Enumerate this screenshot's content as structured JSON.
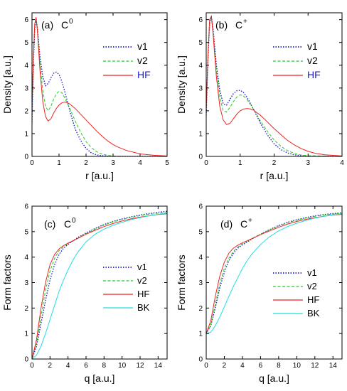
{
  "chart_data": [
    {
      "type": "line",
      "panel_label": "(a)",
      "species": "C",
      "species_sup": "0",
      "xlabel": "r [a.u.]",
      "ylabel": "Density [a.u.]",
      "xlim": [
        0,
        5
      ],
      "ylim": [
        0,
        6.3
      ],
      "xticks": [
        0,
        1,
        2,
        3,
        4,
        5
      ],
      "yticks": [
        0,
        1,
        2,
        3,
        4,
        5,
        6
      ],
      "legend_position": "right",
      "series": [
        {
          "name": "v1",
          "color": "#2222cc",
          "dash": "dotted",
          "label_color": "#000000",
          "x": [
            0,
            0.05,
            0.1,
            0.15,
            0.2,
            0.3,
            0.4,
            0.5,
            0.6,
            0.7,
            0.8,
            0.9,
            1.0,
            1.1,
            1.2,
            1.4,
            1.6,
            1.8,
            2.0,
            2.2,
            2.4,
            2.6,
            2.8,
            3.0,
            3.5,
            4.0,
            5.0
          ],
          "y": [
            1.5,
            4.0,
            5.6,
            6.05,
            5.6,
            4.3,
            3.5,
            3.1,
            3.2,
            3.45,
            3.65,
            3.7,
            3.6,
            3.3,
            2.9,
            2.0,
            1.2,
            0.7,
            0.35,
            0.15,
            0.06,
            0.03,
            0.01,
            0,
            0,
            0,
            0
          ]
        },
        {
          "name": "v2",
          "color": "#22cc22",
          "dash": "dashed",
          "label_color": "#000000",
          "x": [
            0,
            0.05,
            0.1,
            0.15,
            0.2,
            0.3,
            0.4,
            0.5,
            0.6,
            0.7,
            0.8,
            0.9,
            1.0,
            1.1,
            1.2,
            1.4,
            1.6,
            1.8,
            2.0,
            2.2,
            2.4,
            2.6,
            2.8,
            3.0,
            3.2,
            3.5,
            4.0,
            5.0
          ],
          "y": [
            1.8,
            4.2,
            5.7,
            6.1,
            5.6,
            4.0,
            2.9,
            2.2,
            2.0,
            2.2,
            2.5,
            2.75,
            2.85,
            2.8,
            2.6,
            2.1,
            1.55,
            1.05,
            0.65,
            0.38,
            0.2,
            0.1,
            0.05,
            0.02,
            0.01,
            0,
            0,
            0
          ]
        },
        {
          "name": "HF",
          "color": "#ee2222",
          "dash": "solid",
          "label_color": "#1a1acc",
          "x": [
            0,
            0.05,
            0.1,
            0.15,
            0.2,
            0.3,
            0.4,
            0.5,
            0.6,
            0.7,
            0.8,
            0.9,
            1.0,
            1.1,
            1.2,
            1.3,
            1.4,
            1.6,
            1.8,
            2.0,
            2.2,
            2.4,
            2.6,
            2.8,
            3.0,
            3.2,
            3.5,
            4.0,
            4.5,
            5.0
          ],
          "y": [
            2.0,
            4.3,
            5.8,
            6.1,
            5.5,
            3.7,
            2.4,
            1.75,
            1.55,
            1.65,
            1.9,
            2.1,
            2.25,
            2.35,
            2.38,
            2.36,
            2.3,
            2.1,
            1.85,
            1.6,
            1.35,
            1.1,
            0.88,
            0.68,
            0.52,
            0.4,
            0.26,
            0.11,
            0.05,
            0.02
          ]
        }
      ]
    },
    {
      "type": "line",
      "panel_label": "(b)",
      "species": "C",
      "species_sup": "+",
      "xlabel": "r [a.u.]",
      "ylabel": "Density [a.u.]",
      "xlim": [
        0,
        4
      ],
      "ylim": [
        0,
        6.3
      ],
      "xticks": [
        0,
        1,
        2,
        3,
        4
      ],
      "yticks": [
        0,
        1,
        2,
        3,
        4,
        5,
        6
      ],
      "legend_position": "right",
      "series": [
        {
          "name": "v1",
          "color": "#2222cc",
          "dash": "dotted",
          "label_color": "#000000",
          "x": [
            0,
            0.05,
            0.1,
            0.15,
            0.2,
            0.3,
            0.4,
            0.5,
            0.6,
            0.7,
            0.8,
            0.9,
            1.0,
            1.1,
            1.2,
            1.4,
            1.6,
            1.8,
            2.0,
            2.2,
            2.4,
            2.6,
            2.8,
            3.0,
            4.0
          ],
          "y": [
            1.8,
            4.2,
            5.8,
            6.15,
            5.6,
            4.0,
            2.9,
            2.3,
            2.25,
            2.5,
            2.75,
            2.88,
            2.9,
            2.8,
            2.6,
            2.05,
            1.45,
            0.95,
            0.55,
            0.3,
            0.15,
            0.07,
            0.03,
            0.01,
            0
          ]
        },
        {
          "name": "v2",
          "color": "#22cc22",
          "dash": "dashed",
          "label_color": "#000000",
          "x": [
            0,
            0.05,
            0.1,
            0.15,
            0.2,
            0.3,
            0.4,
            0.5,
            0.6,
            0.7,
            0.8,
            0.9,
            1.0,
            1.1,
            1.2,
            1.4,
            1.6,
            1.8,
            2.0,
            2.2,
            2.4,
            2.6,
            2.8,
            3.0,
            4.0
          ],
          "y": [
            1.9,
            4.3,
            5.9,
            6.15,
            5.5,
            3.8,
            2.6,
            2.0,
            1.95,
            2.15,
            2.4,
            2.6,
            2.7,
            2.65,
            2.5,
            2.05,
            1.55,
            1.1,
            0.72,
            0.44,
            0.25,
            0.13,
            0.06,
            0.03,
            0
          ]
        },
        {
          "name": "HF",
          "color": "#ee2222",
          "dash": "solid",
          "label_color": "#1a1acc",
          "x": [
            0,
            0.05,
            0.1,
            0.15,
            0.2,
            0.3,
            0.4,
            0.5,
            0.6,
            0.7,
            0.8,
            0.9,
            1.0,
            1.1,
            1.2,
            1.3,
            1.4,
            1.6,
            1.8,
            2.0,
            2.2,
            2.4,
            2.6,
            2.8,
            3.0,
            3.2,
            3.5,
            4.0
          ],
          "y": [
            2.0,
            4.4,
            6.0,
            6.15,
            5.4,
            3.5,
            2.2,
            1.6,
            1.4,
            1.45,
            1.65,
            1.85,
            2.0,
            2.08,
            2.1,
            2.08,
            2.02,
            1.8,
            1.52,
            1.22,
            0.95,
            0.7,
            0.5,
            0.34,
            0.22,
            0.14,
            0.07,
            0.02
          ]
        }
      ]
    },
    {
      "type": "line",
      "panel_label": "(c)",
      "species": "C",
      "species_sup": "0",
      "xlabel": "q [a.u.]",
      "ylabel": "Form factors",
      "xlim": [
        0,
        15
      ],
      "ylim": [
        0,
        6
      ],
      "xticks": [
        0,
        2,
        4,
        6,
        8,
        10,
        12,
        14
      ],
      "yticks": [
        0,
        1,
        2,
        3,
        4,
        5,
        6
      ],
      "legend_position": "center-right",
      "series": [
        {
          "name": "v1",
          "color": "#2222cc",
          "dash": "dotted",
          "label_color": "#000000",
          "x": [
            0,
            0.5,
            1,
            1.5,
            2,
            2.5,
            3,
            3.5,
            4,
            5,
            6,
            7,
            8,
            9,
            10,
            11,
            12,
            13,
            14,
            15
          ],
          "y": [
            0,
            0.5,
            1.4,
            2.3,
            3.1,
            3.7,
            4.1,
            4.35,
            4.5,
            4.75,
            4.95,
            5.12,
            5.28,
            5.4,
            5.5,
            5.58,
            5.65,
            5.71,
            5.76,
            5.8
          ]
        },
        {
          "name": "v2",
          "color": "#22cc22",
          "dash": "dashed",
          "label_color": "#000000",
          "x": [
            0,
            0.5,
            1,
            1.5,
            2,
            2.5,
            3,
            3.5,
            4,
            5,
            6,
            7,
            8,
            9,
            10,
            11,
            12,
            13,
            14,
            15
          ],
          "y": [
            0,
            0.6,
            1.7,
            2.7,
            3.45,
            3.95,
            4.25,
            4.42,
            4.53,
            4.72,
            4.92,
            5.1,
            5.26,
            5.38,
            5.48,
            5.56,
            5.63,
            5.68,
            5.72,
            5.75
          ]
        },
        {
          "name": "HF",
          "color": "#ee2222",
          "dash": "solid",
          "label_color": "#000000",
          "x": [
            0,
            0.5,
            1,
            1.5,
            2,
            2.5,
            3,
            3.5,
            4,
            5,
            6,
            7,
            8,
            9,
            10,
            11,
            12,
            13,
            14,
            15
          ],
          "y": [
            0,
            0.75,
            2.0,
            3.0,
            3.7,
            4.1,
            4.32,
            4.45,
            4.55,
            4.72,
            4.9,
            5.05,
            5.2,
            5.32,
            5.42,
            5.5,
            5.57,
            5.62,
            5.67,
            5.7
          ]
        },
        {
          "name": "BK",
          "color": "#22dddd",
          "dash": "solid",
          "label_color": "#000000",
          "x": [
            0,
            0.5,
            1,
            1.5,
            2,
            2.5,
            3,
            3.5,
            4,
            4.5,
            5,
            6,
            7,
            8,
            9,
            10,
            11,
            12,
            13,
            14,
            15
          ],
          "y": [
            0,
            0.15,
            0.5,
            1.0,
            1.55,
            2.1,
            2.65,
            3.1,
            3.5,
            3.85,
            4.15,
            4.6,
            4.9,
            5.1,
            5.25,
            5.37,
            5.47,
            5.55,
            5.62,
            5.68,
            5.72
          ]
        }
      ]
    },
    {
      "type": "line",
      "panel_label": "(d)",
      "species": "C",
      "species_sup": "+",
      "xlabel": "q [a.u.]",
      "ylabel": "Form factors",
      "xlim": [
        0,
        15
      ],
      "ylim": [
        0,
        6
      ],
      "xticks": [
        0,
        2,
        4,
        6,
        8,
        10,
        12,
        14
      ],
      "yticks": [
        0,
        1,
        2,
        3,
        4,
        5,
        6
      ],
      "legend_position": "center-right",
      "series": [
        {
          "name": "v1",
          "color": "#2222cc",
          "dash": "dotted",
          "label_color": "#000000",
          "x": [
            0,
            0.5,
            1,
            1.5,
            2,
            2.5,
            3,
            3.5,
            4,
            5,
            6,
            7,
            8,
            9,
            10,
            11,
            12,
            13,
            14,
            15
          ],
          "y": [
            1.0,
            1.3,
            2.0,
            2.8,
            3.4,
            3.85,
            4.15,
            4.35,
            4.48,
            4.7,
            4.9,
            5.08,
            5.24,
            5.37,
            5.47,
            5.55,
            5.62,
            5.67,
            5.71,
            5.74
          ]
        },
        {
          "name": "v2",
          "color": "#22cc22",
          "dash": "dashed",
          "label_color": "#000000",
          "x": [
            0,
            0.5,
            1,
            1.5,
            2,
            2.5,
            3,
            3.5,
            4,
            5,
            6,
            7,
            8,
            9,
            10,
            11,
            12,
            13,
            14,
            15
          ],
          "y": [
            1.0,
            1.35,
            2.15,
            2.95,
            3.55,
            3.95,
            4.22,
            4.4,
            4.52,
            4.72,
            4.9,
            5.07,
            5.22,
            5.35,
            5.45,
            5.53,
            5.6,
            5.65,
            5.69,
            5.72
          ]
        },
        {
          "name": "HF",
          "color": "#ee2222",
          "dash": "solid",
          "label_color": "#000000",
          "x": [
            0,
            0.5,
            1,
            1.5,
            2,
            2.5,
            3,
            3.5,
            4,
            5,
            6,
            7,
            8,
            9,
            10,
            11,
            12,
            13,
            14,
            15
          ],
          "y": [
            1.0,
            1.5,
            2.45,
            3.25,
            3.8,
            4.15,
            4.35,
            4.47,
            4.56,
            4.72,
            4.88,
            5.03,
            5.17,
            5.3,
            5.4,
            5.48,
            5.55,
            5.6,
            5.65,
            5.68
          ]
        },
        {
          "name": "BK",
          "color": "#22dddd",
          "dash": "solid",
          "label_color": "#000000",
          "x": [
            0,
            0.5,
            1,
            1.5,
            2,
            2.5,
            3,
            3.5,
            4,
            4.5,
            5,
            6,
            7,
            8,
            9,
            10,
            11,
            12,
            13,
            14,
            15
          ],
          "y": [
            1.0,
            1.05,
            1.3,
            1.65,
            2.05,
            2.45,
            2.85,
            3.2,
            3.55,
            3.85,
            4.1,
            4.5,
            4.8,
            5.03,
            5.2,
            5.33,
            5.44,
            5.53,
            5.6,
            5.66,
            5.7
          ]
        }
      ]
    }
  ]
}
